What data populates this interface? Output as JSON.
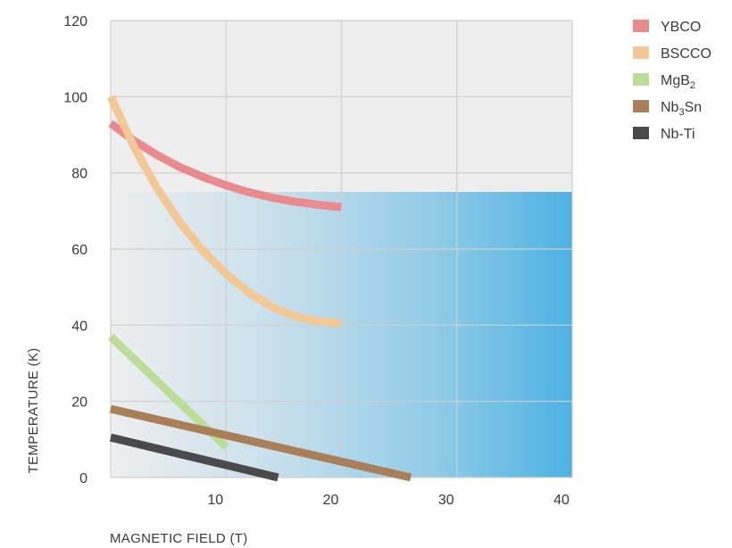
{
  "chart_data": {
    "type": "line",
    "title": "",
    "xlabel": "MAGNETIC FIELD (T)",
    "ylabel": "TEMPERATURE (K)",
    "xlim": [
      0,
      40
    ],
    "ylim": [
      0,
      120
    ],
    "x_ticks": [
      10,
      20,
      30,
      40
    ],
    "y_ticks": [
      0,
      20,
      40,
      60,
      80,
      100,
      120
    ],
    "grid": true,
    "legend_position": "right",
    "shaded_region": {
      "x": [
        0,
        40
      ],
      "y": [
        0,
        75
      ],
      "color": "#45afe2"
    },
    "series": [
      {
        "name": "YBCO",
        "sup": "",
        "color": "#e88a8e",
        "x": [
          0,
          2,
          4,
          6,
          8,
          10,
          12,
          14,
          16,
          18,
          20
        ],
        "y": [
          93,
          88.5,
          84.7,
          81.5,
          78.9,
          76.7,
          74.9,
          73.5,
          72.4,
          71.6,
          71
        ]
      },
      {
        "name": "BSCCO",
        "sup": "",
        "color": "#f3c796",
        "x": [
          0,
          2,
          4,
          6,
          8,
          10,
          12,
          14,
          16,
          18,
          20
        ],
        "y": [
          100,
          87,
          76,
          67,
          59.5,
          53.5,
          48.5,
          44.8,
          42.3,
          41,
          40.5
        ]
      },
      {
        "name": "MgB",
        "sub": "2",
        "color": "#bcdc9a",
        "x": [
          0,
          10
        ],
        "y": [
          37,
          8
        ]
      },
      {
        "name": "Nb",
        "sub": "3",
        "suffix": "Sn",
        "color": "#a97f59",
        "x": [
          0,
          26
        ],
        "y": [
          18,
          0
        ]
      },
      {
        "name": "Nb-Ti",
        "sup": "",
        "color": "#4a4a4c",
        "x": [
          0,
          14.5
        ],
        "y": [
          10.5,
          0
        ]
      }
    ]
  }
}
